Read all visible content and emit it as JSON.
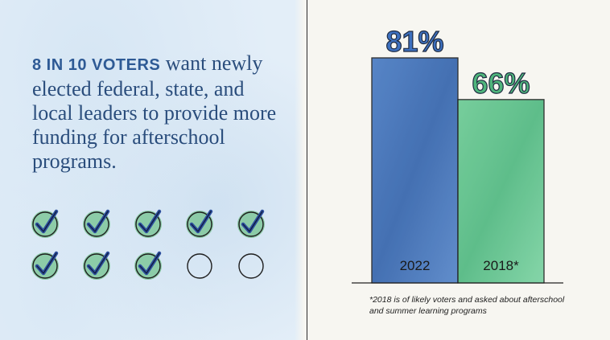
{
  "headline": {
    "emphasis": "8 IN 10 VOTERS",
    "rest": "want newly elected federal, state, and local leaders to provide more funding for afterschool programs."
  },
  "checkmarks": {
    "checked": 8,
    "total": 10
  },
  "chart_data": {
    "type": "bar",
    "categories": [
      "2022",
      "2018*"
    ],
    "values": [
      81,
      66
    ],
    "value_labels": [
      "81%",
      "66%"
    ],
    "ylim": [
      0,
      100
    ],
    "colors": [
      "#3f6fb5",
      "#5cc08a"
    ],
    "value_label_colors": [
      "#3d70bf",
      "#4fb57c"
    ],
    "grid": false
  },
  "footnote": {
    "line1": "*2018 is of likely voters and asked about afterschool",
    "line2": "and summer learning programs"
  }
}
